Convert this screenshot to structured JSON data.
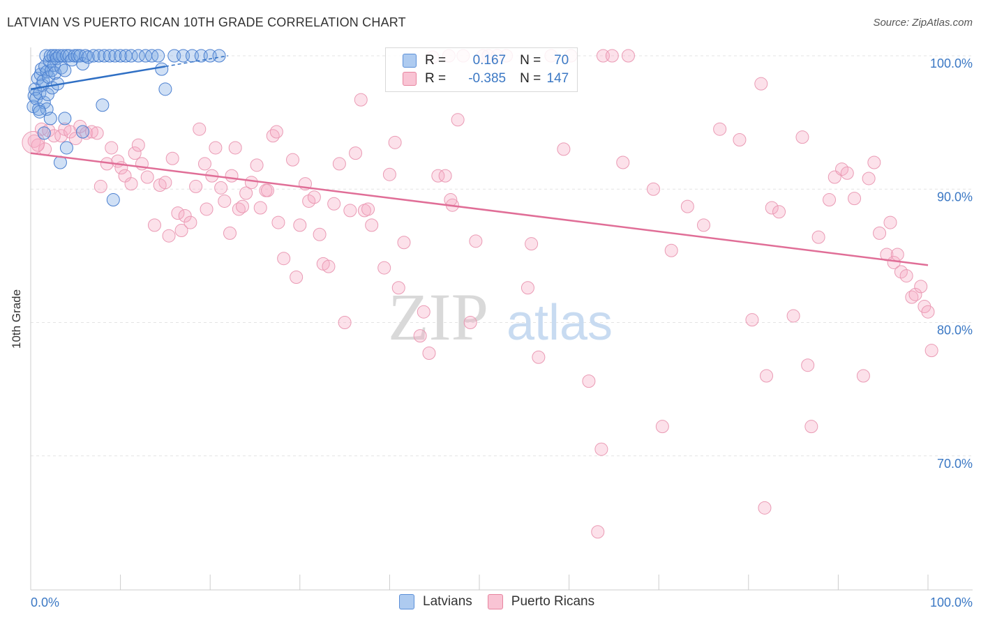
{
  "title": "LATVIAN VS PUERTO RICAN 10TH GRADE CORRELATION CHART",
  "source": "Source: ZipAtlas.com",
  "watermark": {
    "zip": "ZIP",
    "atlas": "atlas"
  },
  "legend": {
    "r_label": "R =",
    "n_label": "N =",
    "rows": [
      {
        "r": "0.167",
        "n": "70",
        "fill": "#aecbf0",
        "stroke": "#5b8fd8"
      },
      {
        "r": "-0.385",
        "n": "147",
        "fill": "#f9c4d4",
        "stroke": "#e7849f"
      }
    ]
  },
  "bottom_legend": [
    {
      "label": "Latvians",
      "fill": "#aecbf0",
      "stroke": "#5b8fd8"
    },
    {
      "label": "Puerto Ricans",
      "fill": "#f9c4d4",
      "stroke": "#e7849f"
    }
  ],
  "chart_data": {
    "type": "scatter",
    "xlabel": "",
    "ylabel": "10th Grade",
    "xlim": [
      0,
      100
    ],
    "ylim": [
      60,
      100
    ],
    "x_tick_labels": [
      "0.0%",
      "100.0%"
    ],
    "y_ticks": [
      70,
      80,
      90,
      100
    ],
    "y_tick_labels": [
      "70.0%",
      "80.0%",
      "90.0%",
      "100.0%"
    ],
    "grid": true,
    "legend_position": "top-center",
    "series": [
      {
        "name": "Latvians",
        "color": "#3b78c4",
        "trend": {
          "x0": 0,
          "y0": 97.5,
          "x1": 15,
          "y1": 99.2,
          "dashed_to_x": 22,
          "dashed_to_y": 100.0
        },
        "points": [
          [
            0.3,
            96.2
          ],
          [
            0.4,
            97.0
          ],
          [
            0.5,
            97.5
          ],
          [
            0.6,
            96.8
          ],
          [
            0.8,
            98.3
          ],
          [
            0.9,
            96.0
          ],
          [
            1.0,
            97.2
          ],
          [
            1.1,
            98.6
          ],
          [
            1.2,
            99.0
          ],
          [
            1.3,
            97.8
          ],
          [
            1.4,
            98.1
          ],
          [
            1.5,
            96.5
          ],
          [
            1.6,
            99.2
          ],
          [
            1.7,
            100.0
          ],
          [
            1.8,
            98.8
          ],
          [
            1.9,
            97.1
          ],
          [
            2.0,
            98.4
          ],
          [
            2.1,
            99.6
          ],
          [
            2.2,
            100.0
          ],
          [
            2.3,
            98.9
          ],
          [
            2.4,
            97.6
          ],
          [
            2.5,
            100.0
          ],
          [
            2.6,
            99.3
          ],
          [
            2.7,
            98.7
          ],
          [
            2.8,
            100.0
          ],
          [
            2.9,
            99.8
          ],
          [
            3.0,
            97.9
          ],
          [
            3.2,
            100.0
          ],
          [
            3.4,
            99.1
          ],
          [
            3.6,
            100.0
          ],
          [
            3.8,
            98.9
          ],
          [
            4.0,
            100.0
          ],
          [
            4.3,
            100.0
          ],
          [
            4.6,
            99.7
          ],
          [
            4.9,
            100.0
          ],
          [
            5.2,
            100.0
          ],
          [
            5.5,
            100.0
          ],
          [
            5.8,
            99.4
          ],
          [
            6.1,
            100.0
          ],
          [
            6.4,
            99.9
          ],
          [
            7.0,
            100.0
          ],
          [
            7.6,
            100.0
          ],
          [
            8.2,
            100.0
          ],
          [
            8.8,
            100.0
          ],
          [
            9.4,
            100.0
          ],
          [
            10.0,
            100.0
          ],
          [
            10.6,
            100.0
          ],
          [
            11.2,
            100.0
          ],
          [
            12.0,
            100.0
          ],
          [
            12.8,
            100.0
          ],
          [
            13.5,
            100.0
          ],
          [
            14.2,
            100.0
          ],
          [
            14.6,
            99.0
          ],
          [
            15.0,
            97.5
          ],
          [
            16.0,
            100.0
          ],
          [
            17.0,
            100.0
          ],
          [
            18.0,
            100.0
          ],
          [
            19.0,
            100.0
          ],
          [
            20.0,
            100.0
          ],
          [
            21.0,
            100.0
          ],
          [
            8.0,
            96.3
          ],
          [
            1.8,
            96.0
          ],
          [
            2.2,
            95.3
          ],
          [
            3.8,
            95.3
          ],
          [
            5.8,
            94.3
          ],
          [
            1.5,
            94.2
          ],
          [
            4.0,
            93.1
          ],
          [
            3.3,
            92.0
          ],
          [
            9.2,
            89.2
          ],
          [
            1.0,
            95.8
          ]
        ]
      },
      {
        "name": "Puerto Ricans",
        "color": "#e06e97",
        "trend": {
          "x0": 0,
          "y0": 92.7,
          "x1": 100,
          "y1": 84.3
        },
        "points": [
          [
            0.4,
            93.6
          ],
          [
            0.8,
            93.3
          ],
          [
            1.2,
            94.5
          ],
          [
            1.6,
            93.0
          ],
          [
            2.0,
            94.4
          ],
          [
            2.6,
            94.0
          ],
          [
            3.4,
            94.0
          ],
          [
            3.8,
            94.5
          ],
          [
            4.4,
            94.3
          ],
          [
            5.0,
            93.8
          ],
          [
            5.5,
            94.7
          ],
          [
            6.2,
            94.2
          ],
          [
            6.8,
            94.3
          ],
          [
            7.4,
            94.2
          ],
          [
            7.8,
            90.2
          ],
          [
            8.5,
            91.9
          ],
          [
            9.0,
            93.1
          ],
          [
            9.7,
            92.1
          ],
          [
            10.1,
            91.6
          ],
          [
            10.5,
            91.0
          ],
          [
            11.2,
            90.4
          ],
          [
            11.6,
            92.7
          ],
          [
            12.0,
            93.3
          ],
          [
            12.4,
            91.9
          ],
          [
            13.0,
            90.9
          ],
          [
            13.8,
            87.3
          ],
          [
            14.4,
            90.3
          ],
          [
            15.0,
            90.5
          ],
          [
            15.4,
            86.5
          ],
          [
            15.8,
            92.3
          ],
          [
            16.4,
            88.2
          ],
          [
            16.8,
            86.9
          ],
          [
            17.2,
            88.0
          ],
          [
            17.8,
            87.5
          ],
          [
            18.4,
            90.2
          ],
          [
            18.8,
            94.5
          ],
          [
            19.4,
            91.9
          ],
          [
            19.6,
            88.5
          ],
          [
            20.2,
            91.0
          ],
          [
            20.6,
            93.1
          ],
          [
            21.2,
            90.1
          ],
          [
            21.6,
            89.1
          ],
          [
            22.4,
            91.0
          ],
          [
            22.8,
            93.1
          ],
          [
            23.2,
            88.5
          ],
          [
            23.6,
            88.7
          ],
          [
            24.0,
            89.7
          ],
          [
            24.6,
            90.5
          ],
          [
            25.2,
            91.8
          ],
          [
            25.6,
            88.6
          ],
          [
            26.2,
            89.9
          ],
          [
            27.0,
            94.0
          ],
          [
            27.4,
            94.3
          ],
          [
            27.6,
            87.5
          ],
          [
            28.2,
            84.8
          ],
          [
            29.2,
            92.2
          ],
          [
            29.6,
            83.4
          ],
          [
            30.0,
            87.3
          ],
          [
            30.6,
            90.4
          ],
          [
            31.0,
            89.1
          ],
          [
            31.6,
            89.4
          ],
          [
            32.2,
            86.6
          ],
          [
            32.6,
            84.4
          ],
          [
            33.2,
            84.2
          ],
          [
            33.8,
            88.9
          ],
          [
            34.4,
            91.9
          ],
          [
            35.0,
            80.0
          ],
          [
            35.6,
            88.4
          ],
          [
            36.2,
            92.7
          ],
          [
            36.8,
            96.7
          ],
          [
            37.2,
            88.4
          ],
          [
            38.0,
            87.3
          ],
          [
            39.4,
            84.1
          ],
          [
            40.0,
            91.1
          ],
          [
            40.6,
            93.5
          ],
          [
            41.0,
            82.6
          ],
          [
            41.6,
            86.0
          ],
          [
            43.4,
            79.0
          ],
          [
            43.8,
            80.8
          ],
          [
            44.4,
            77.7
          ],
          [
            44.8,
            99.9
          ],
          [
            45.4,
            91.0
          ],
          [
            46.2,
            91.0
          ],
          [
            46.6,
            100.0
          ],
          [
            47.0,
            88.8
          ],
          [
            47.6,
            95.2
          ],
          [
            48.2,
            100.0
          ],
          [
            49.0,
            80.0
          ],
          [
            49.6,
            86.1
          ],
          [
            50.4,
            100.0
          ],
          [
            51.0,
            100.0
          ],
          [
            52.0,
            100.0
          ],
          [
            53.0,
            100.0
          ],
          [
            55.4,
            82.6
          ],
          [
            56.6,
            77.4
          ],
          [
            58.0,
            100.0
          ],
          [
            59.4,
            93.0
          ],
          [
            60.2,
            100.0
          ],
          [
            62.2,
            75.6
          ],
          [
            63.8,
            100.0
          ],
          [
            64.8,
            100.0
          ],
          [
            66.0,
            92.0
          ],
          [
            66.6,
            100.0
          ],
          [
            69.4,
            90.0
          ],
          [
            70.4,
            72.2
          ],
          [
            71.4,
            85.4
          ],
          [
            73.2,
            88.7
          ],
          [
            75.0,
            87.3
          ],
          [
            76.8,
            94.5
          ],
          [
            79.0,
            93.7
          ],
          [
            80.4,
            80.2
          ],
          [
            81.4,
            97.9
          ],
          [
            82.0,
            76.0
          ],
          [
            82.6,
            88.6
          ],
          [
            83.4,
            88.3
          ],
          [
            85.0,
            80.5
          ],
          [
            86.0,
            93.9
          ],
          [
            86.6,
            76.8
          ],
          [
            87.0,
            72.2
          ],
          [
            87.8,
            86.4
          ],
          [
            89.0,
            89.2
          ],
          [
            89.6,
            90.9
          ],
          [
            90.4,
            91.5
          ],
          [
            91.0,
            91.2
          ],
          [
            91.8,
            89.3
          ],
          [
            92.8,
            76.0
          ],
          [
            93.4,
            90.8
          ],
          [
            94.0,
            92.0
          ],
          [
            94.6,
            86.7
          ],
          [
            95.4,
            85.1
          ],
          [
            95.8,
            87.5
          ],
          [
            96.2,
            84.5
          ],
          [
            96.6,
            85.1
          ],
          [
            97.0,
            83.8
          ],
          [
            97.6,
            83.5
          ],
          [
            98.2,
            81.9
          ],
          [
            98.6,
            82.1
          ],
          [
            99.2,
            82.7
          ],
          [
            99.6,
            81.2
          ],
          [
            100.0,
            80.8
          ],
          [
            100.4,
            77.9
          ],
          [
            63.2,
            64.3
          ],
          [
            81.8,
            66.1
          ],
          [
            63.6,
            70.5
          ],
          [
            26.4,
            89.9
          ],
          [
            22.2,
            86.7
          ],
          [
            37.6,
            88.5
          ],
          [
            46.8,
            89.2
          ],
          [
            55.8,
            85.9
          ]
        ]
      }
    ]
  }
}
